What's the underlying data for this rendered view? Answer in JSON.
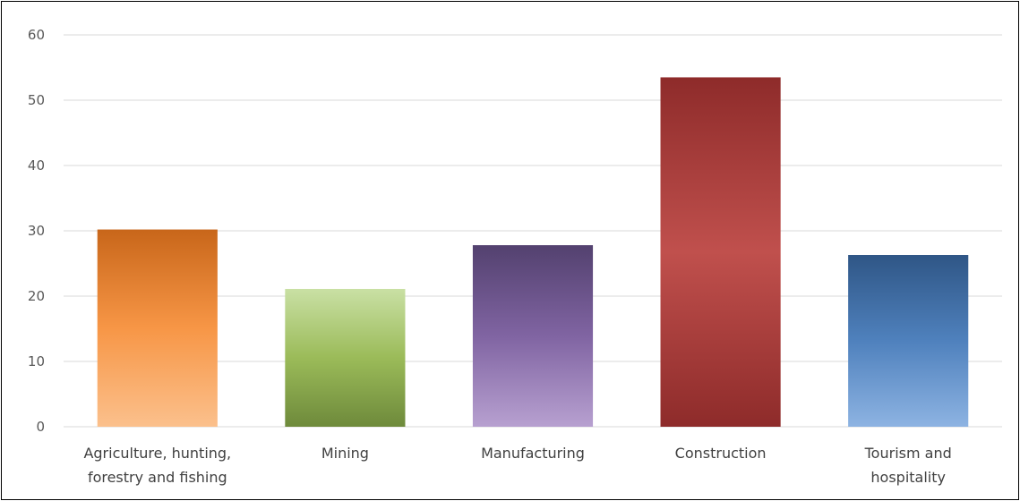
{
  "chart_data": {
    "type": "bar",
    "categories": [
      [
        "Agriculture, hunting,",
        "forestry and fishing"
      ],
      [
        "Mining"
      ],
      [
        "Manufacturing"
      ],
      [
        "Construction"
      ],
      [
        "Tourism and",
        "hospitality"
      ]
    ],
    "values": [
      30.2,
      21.1,
      27.8,
      53.5,
      26.3
    ],
    "ylim": [
      0,
      60
    ],
    "yticks": [
      0,
      10,
      20,
      30,
      40,
      50,
      60
    ],
    "title": "",
    "xlabel": "",
    "ylabel": "",
    "grid": true,
    "legend": "none",
    "bar_colors": [
      {
        "top": "#c8661a",
        "mid": "#f79646",
        "bottom": "#fbc08c"
      },
      {
        "top": "#c9e0a4",
        "mid": "#9bbb59",
        "bottom": "#6e8a3b"
      },
      {
        "top": "#53416f",
        "mid": "#8064a2",
        "bottom": "#b7a0d0"
      },
      {
        "top": "#8e2b2a",
        "mid": "#c0504d",
        "bottom": "#8e2b2a"
      },
      {
        "top": "#2f5686",
        "mid": "#4f81bd",
        "bottom": "#8db3e2"
      }
    ]
  }
}
